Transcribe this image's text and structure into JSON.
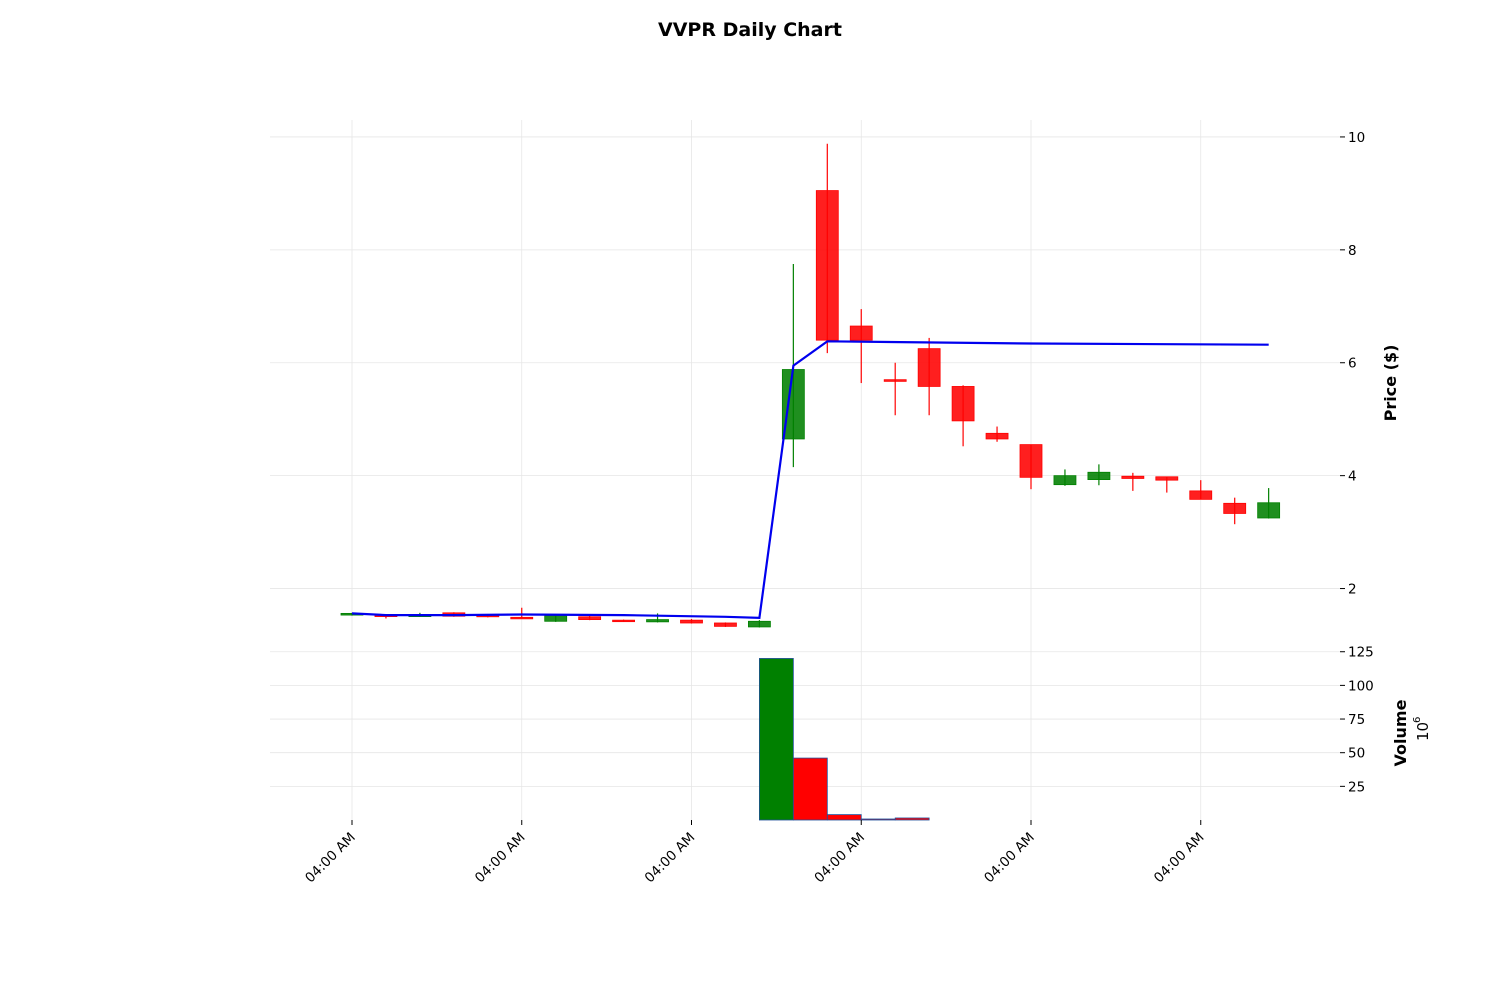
{
  "chart_data": {
    "type": "candlestick",
    "title": "VVPR Daily Chart",
    "ylabel": "Price ($)",
    "volume_label": "Volume",
    "volume_exponent_label": "10",
    "volume_exponent_power": "6",
    "ylim": [
      1.0,
      10.3
    ],
    "volume_ylim": [
      0,
      130
    ],
    "price_ticks": [
      2,
      4,
      6,
      8,
      10
    ],
    "volume_ticks": [
      25,
      50,
      75,
      100,
      125
    ],
    "x_tick_labels": [
      {
        "index": 0,
        "label": "04:00 AM"
      },
      {
        "index": 5,
        "label": "04:00 AM"
      },
      {
        "index": 10,
        "label": "04:00 AM"
      },
      {
        "index": 15,
        "label": "04:00 AM"
      },
      {
        "index": 20,
        "label": "04:00 AM"
      },
      {
        "index": 25,
        "label": "04:00 AM"
      }
    ],
    "grid": true,
    "colors": {
      "up": "#008000",
      "down": "#ff0000",
      "ma": "#0000ee"
    },
    "candles": [
      {
        "o": 1.53,
        "h": 1.57,
        "l": 1.52,
        "c": 1.56
      },
      {
        "o": 1.53,
        "h": 1.54,
        "l": 1.47,
        "c": 1.52
      },
      {
        "o": 1.52,
        "h": 1.57,
        "l": 1.5,
        "c": 1.53
      },
      {
        "o": 1.57,
        "h": 1.58,
        "l": 1.5,
        "c": 1.51
      },
      {
        "o": 1.53,
        "h": 1.54,
        "l": 1.49,
        "c": 1.5
      },
      {
        "o": 1.49,
        "h": 1.66,
        "l": 1.48,
        "c": 1.48
      },
      {
        "o": 1.42,
        "h": 1.53,
        "l": 1.41,
        "c": 1.52
      },
      {
        "o": 1.5,
        "h": 1.52,
        "l": 1.44,
        "c": 1.45
      },
      {
        "o": 1.44,
        "h": 1.45,
        "l": 1.42,
        "c": 1.43
      },
      {
        "o": 1.41,
        "h": 1.56,
        "l": 1.4,
        "c": 1.45
      },
      {
        "o": 1.44,
        "h": 1.46,
        "l": 1.38,
        "c": 1.39
      },
      {
        "o": 1.39,
        "h": 1.4,
        "l": 1.32,
        "c": 1.33
      },
      {
        "o": 1.32,
        "h": 1.44,
        "l": 1.31,
        "c": 1.42
      },
      {
        "o": 4.65,
        "h": 7.75,
        "l": 4.15,
        "c": 5.88
      },
      {
        "o": 9.05,
        "h": 9.88,
        "l": 6.17,
        "c": 6.4
      },
      {
        "o": 6.65,
        "h": 6.95,
        "l": 5.64,
        "c": 6.4
      },
      {
        "o": 5.7,
        "h": 6.0,
        "l": 5.07,
        "c": 5.67
      },
      {
        "o": 6.25,
        "h": 6.44,
        "l": 5.07,
        "c": 5.58
      },
      {
        "o": 5.58,
        "h": 5.6,
        "l": 4.52,
        "c": 4.97
      },
      {
        "o": 4.75,
        "h": 4.87,
        "l": 4.6,
        "c": 4.65
      },
      {
        "o": 4.55,
        "h": 4.55,
        "l": 3.76,
        "c": 3.97
      },
      {
        "o": 3.84,
        "h": 4.11,
        "l": 3.82,
        "c": 4.0
      },
      {
        "o": 3.93,
        "h": 4.2,
        "l": 3.83,
        "c": 4.06
      },
      {
        "o": 3.99,
        "h": 4.05,
        "l": 3.73,
        "c": 3.95
      },
      {
        "o": 3.98,
        "h": 3.98,
        "l": 3.7,
        "c": 3.92
      },
      {
        "o": 3.73,
        "h": 3.92,
        "l": 3.58,
        "c": 3.58
      },
      {
        "o": 3.51,
        "h": 3.61,
        "l": 3.14,
        "c": 3.33
      },
      {
        "o": 3.25,
        "h": 3.78,
        "l": 3.24,
        "c": 3.52
      }
    ],
    "volume_bars": [
      {
        "x": 12.5,
        "value": 120,
        "dir": "up"
      },
      {
        "x": 13.5,
        "value": 46,
        "dir": "down"
      },
      {
        "x": 14.5,
        "value": 4,
        "dir": "down"
      },
      {
        "x": 15.5,
        "value": 0.3,
        "dir": "down"
      },
      {
        "x": 16.5,
        "value": 1.5,
        "dir": "down"
      }
    ],
    "moving_average": [
      {
        "x": 0,
        "y": 1.56
      },
      {
        "x": 1,
        "y": 1.53
      },
      {
        "x": 2,
        "y": 1.53
      },
      {
        "x": 3,
        "y": 1.53
      },
      {
        "x": 5,
        "y": 1.54
      },
      {
        "x": 8,
        "y": 1.53
      },
      {
        "x": 11,
        "y": 1.5
      },
      {
        "x": 12,
        "y": 1.48
      },
      {
        "x": 13,
        "y": 5.95
      },
      {
        "x": 14,
        "y": 6.38
      },
      {
        "x": 20,
        "y": 6.34
      },
      {
        "x": 27,
        "y": 6.32
      }
    ]
  }
}
